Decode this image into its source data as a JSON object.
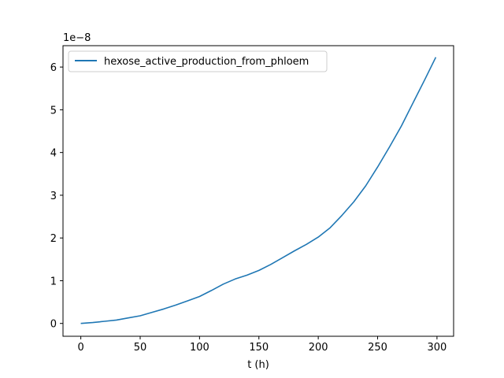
{
  "chart_data": {
    "type": "line",
    "title": "",
    "xlabel": "t (h)",
    "ylabel": "",
    "y_offset_label": "1e−8",
    "xlim": [
      -15,
      314
    ],
    "ylim": [
      -0.3,
      6.5
    ],
    "x_ticks": [
      0,
      50,
      100,
      150,
      200,
      250,
      300
    ],
    "x_tick_labels": [
      "0",
      "50",
      "100",
      "150",
      "200",
      "250",
      "300"
    ],
    "y_ticks": [
      0,
      1,
      2,
      3,
      4,
      5,
      6
    ],
    "y_tick_labels": [
      "0",
      "1",
      "2",
      "3",
      "4",
      "5",
      "6"
    ],
    "grid": false,
    "legend_position": "top-left",
    "series": [
      {
        "name": "hexose_active_production_from_phloem",
        "color": "#1f77b4",
        "x": [
          0,
          10,
          20,
          30,
          40,
          50,
          60,
          70,
          80,
          90,
          100,
          110,
          120,
          130,
          140,
          150,
          160,
          170,
          180,
          190,
          200,
          210,
          220,
          230,
          240,
          250,
          260,
          270,
          280,
          290,
          299
        ],
        "y": [
          0.0,
          0.02,
          0.05,
          0.08,
          0.13,
          0.18,
          0.26,
          0.34,
          0.43,
          0.53,
          0.63,
          0.77,
          0.92,
          1.04,
          1.13,
          1.24,
          1.38,
          1.54,
          1.7,
          1.85,
          2.02,
          2.24,
          2.53,
          2.85,
          3.22,
          3.66,
          4.13,
          4.62,
          5.17,
          5.72,
          6.23
        ]
      }
    ]
  }
}
